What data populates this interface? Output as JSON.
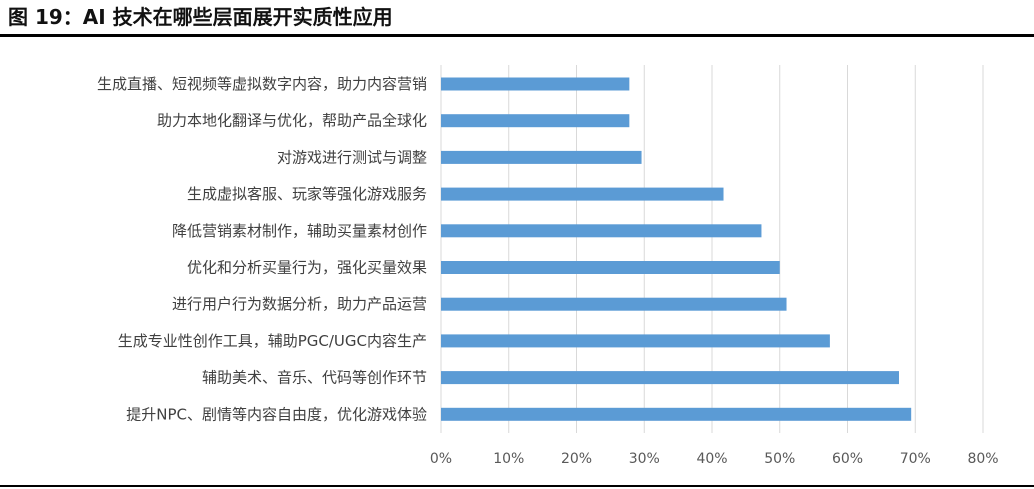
{
  "title": "图 19：AI 技术在哪些层面展开实质性应用",
  "chart_data": {
    "type": "bar",
    "orientation": "horizontal",
    "categories": [
      "生成直播、短视频等虚拟数字内容，助力内容营销",
      "助力本地化翻译与优化，帮助产品全球化",
      "对游戏进行测试与调整",
      "生成虚拟客服、玩家等强化游戏服务",
      "降低营销素材制作，辅助买量素材创作",
      "优化和分析买量行为，强化买量效果",
      "进行用户行为数据分析，助力产品运营",
      "生成专业性创作工具，辅助PGC/UGC内容生产",
      "辅助美术、音乐、代码等创作环节",
      "提升NPC、剧情等内容自由度，优化游戏体验"
    ],
    "values": [
      27.8,
      27.8,
      29.6,
      41.7,
      47.3,
      50.0,
      51.0,
      57.4,
      67.6,
      69.4
    ],
    "xlim": [
      0,
      80
    ],
    "xticks": [
      "0%",
      "10%",
      "20%",
      "30%",
      "40%",
      "50%",
      "60%",
      "70%",
      "80%"
    ],
    "xlabel": "",
    "ylabel": "",
    "grid": "vertical",
    "bar_color": "#5b9bd5",
    "grid_color": "#d9d9d9"
  }
}
